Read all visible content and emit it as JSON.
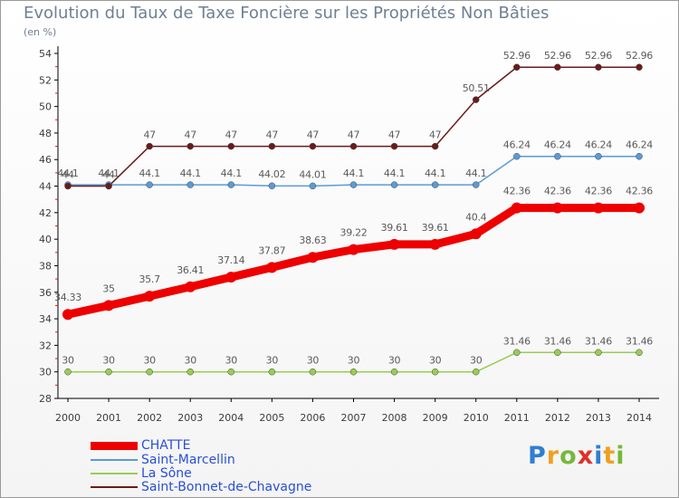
{
  "title": "Evolution du Taux de Taxe Foncière sur les Propriétés Non Bâties",
  "unit": "(en %)",
  "logo": {
    "p": "P",
    "r": "r",
    "o": "o",
    "x": "x",
    "i": "i",
    "t": "t",
    "i2": "i"
  },
  "colors": {
    "axis": "#000000",
    "tick_label": "#3d3d3d",
    "value_label": "#5a5a5a",
    "legend_text": "#2a4fd6",
    "title": "#6f7f94"
  },
  "chart_data": {
    "type": "line",
    "title": "Evolution du Taux de Taxe Foncière sur les Propriétés Non Bâties",
    "ylabel": "(en %)",
    "xlabel": "",
    "x": [
      "2000",
      "2001",
      "2002",
      "2003",
      "2004",
      "2005",
      "2006",
      "2007",
      "2008",
      "2009",
      "2010",
      "2011",
      "2012",
      "2013",
      "2014"
    ],
    "ylim": [
      28,
      54
    ],
    "yticks": [
      28,
      30,
      32,
      34,
      36,
      38,
      40,
      42,
      44,
      46,
      48,
      50,
      52,
      54
    ],
    "series": [
      {
        "name": "CHATTE",
        "color": "#ee0000",
        "values": [
          34.33,
          35,
          35.7,
          36.41,
          37.14,
          37.87,
          38.63,
          39.22,
          39.61,
          39.61,
          40.4,
          42.36,
          42.36,
          42.36,
          42.36
        ],
        "labels": [
          "34.33",
          "35",
          "35.7",
          "36.41",
          "37.14",
          "37.87",
          "38.63",
          "39.22",
          "39.61",
          "39.61",
          "40.4",
          "42.36",
          "42.36",
          "42.36",
          "42.36"
        ]
      },
      {
        "name": "Saint-Marcellin",
        "color": "#5b9bd5",
        "values": [
          44.1,
          44.1,
          44.1,
          44.1,
          44.1,
          44.02,
          44.01,
          44.1,
          44.1,
          44.1,
          44.1,
          46.24,
          46.24,
          46.24,
          46.24
        ],
        "labels": [
          "44.1",
          "44.1",
          "44.1",
          "44.1",
          "44.1",
          "44.02",
          "44.01",
          "44.1",
          "44.1",
          "44.1",
          "44.1",
          "46.24",
          "46.24",
          "46.24",
          "46.24"
        ]
      },
      {
        "name": "La Sône",
        "color": "#99cc55",
        "values": [
          30,
          30,
          30,
          30,
          30,
          30,
          30,
          30,
          30,
          30,
          30,
          31.46,
          31.46,
          31.46,
          31.46
        ],
        "labels": [
          "30",
          "30",
          "30",
          "30",
          "30",
          "30",
          "30",
          "30",
          "30",
          "30",
          "30",
          "31.46",
          "31.46",
          "31.46",
          "31.46"
        ]
      },
      {
        "name": "Saint-Bonnet-de-Chavagne",
        "color": "#6b1a1a",
        "values": [
          44,
          44,
          47,
          47,
          47,
          47,
          47,
          47,
          47,
          47,
          50.51,
          52.96,
          52.96,
          52.96,
          52.96
        ],
        "labels": [
          "44",
          "44",
          "47",
          "47",
          "47",
          "47",
          "47",
          "47",
          "47",
          "47",
          "50.51",
          "52.96",
          "52.96",
          "52.96",
          "52.96"
        ]
      }
    ],
    "legend": "bottom-left",
    "grid": false
  }
}
